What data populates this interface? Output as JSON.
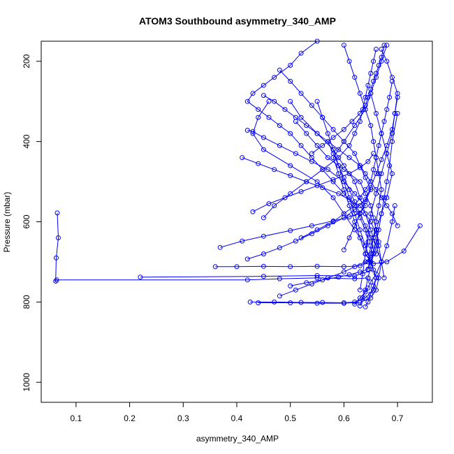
{
  "chart_data": {
    "type": "line",
    "title": "ATOM3 Southbound asymmetry_340_AMP",
    "xlabel": "asymmetry_340_AMP",
    "ylabel": "Pressure (mbar)",
    "xlim": [
      0.035,
      0.765
    ],
    "ylim": [
      1050,
      150
    ],
    "y_reversed": true,
    "grid": false,
    "legend": "none",
    "x_ticks": [
      0.1,
      0.2,
      0.3,
      0.4,
      0.5,
      0.6,
      0.7
    ],
    "x_tick_labels": [
      "0.1",
      "0.2",
      "0.3",
      "0.4",
      "0.5",
      "0.6",
      "0.7"
    ],
    "y_ticks": [
      200,
      400,
      600,
      800,
      1000
    ],
    "y_tick_labels": [
      "200",
      "400",
      "600",
      "800",
      "1000"
    ],
    "color": "#0000ff",
    "marker": "open-circle",
    "series": [
      {
        "x": [
          0.065,
          0.067,
          0.063,
          0.062,
          0.064,
          0.42,
          0.48,
          0.55,
          0.62,
          0.645
        ],
        "y": [
          578,
          640,
          690,
          748,
          745,
          745,
          742,
          740,
          742,
          740
        ]
      },
      {
        "x": [
          0.22,
          0.45,
          0.55,
          0.62,
          0.655,
          0.65,
          0.64,
          0.645,
          0.64,
          0.63,
          0.62,
          0.6,
          0.58,
          0.56,
          0.54,
          0.52,
          0.5,
          0.48,
          0.46,
          0.44,
          0.42,
          0.43,
          0.45,
          0.47,
          0.5,
          0.52,
          0.55
        ],
        "y": [
          738,
          736,
          734,
          735,
          720,
          700,
          680,
          650,
          620,
          590,
          560,
          530,
          500,
          470,
          440,
          410,
          380,
          360,
          340,
          320,
          300,
          280,
          260,
          240,
          210,
          180,
          150
        ]
      },
      {
        "x": [
          0.742,
          0.712,
          0.68,
          0.655,
          0.64,
          0.63,
          0.62,
          0.61,
          0.6,
          0.59,
          0.58,
          0.6,
          0.62,
          0.64,
          0.65,
          0.66,
          0.67,
          0.68
        ],
        "y": [
          610,
          673,
          700,
          705,
          680,
          640,
          600,
          560,
          520,
          480,
          440,
          400,
          360,
          320,
          280,
          240,
          200,
          160
        ]
      },
      {
        "x": [
          0.425,
          0.47,
          0.52,
          0.56,
          0.6,
          0.62,
          0.64,
          0.655,
          0.66,
          0.65,
          0.64,
          0.62,
          0.6,
          0.58,
          0.55,
          0.5,
          0.45,
          0.43,
          0.44,
          0.46
        ],
        "y": [
          800,
          800,
          801,
          801,
          802,
          800,
          790,
          770,
          740,
          700,
          660,
          620,
          580,
          540,
          500,
          460,
          420,
          380,
          340,
          300
        ]
      },
      {
        "x": [
          0.36,
          0.4,
          0.45,
          0.5,
          0.55,
          0.6,
          0.63,
          0.645,
          0.65,
          0.66,
          0.67,
          0.68,
          0.69,
          0.68,
          0.67,
          0.66,
          0.65
        ],
        "y": [
          712,
          712,
          711,
          712,
          711,
          712,
          710,
          700,
          660,
          620,
          580,
          540,
          480,
          430,
          380,
          330,
          280
        ]
      },
      {
        "x": [
          0.369,
          0.41,
          0.45,
          0.5,
          0.54,
          0.58,
          0.61,
          0.63,
          0.64,
          0.62,
          0.6,
          0.57,
          0.54,
          0.51,
          0.48,
          0.45,
          0.43,
          0.42
        ],
        "y": [
          664,
          648,
          636,
          622,
          610,
          598,
          588,
          578,
          560,
          530,
          500,
          470,
          450,
          430,
          410,
          390,
          375,
          372
        ]
      },
      {
        "x": [
          0.42,
          0.45,
          0.48,
          0.51,
          0.54,
          0.57,
          0.6,
          0.62,
          0.64,
          0.65,
          0.66,
          0.67,
          0.68,
          0.69,
          0.695,
          0.7
        ],
        "y": [
          693,
          680,
          665,
          648,
          630,
          610,
          590,
          570,
          545,
          515,
          480,
          445,
          410,
          370,
          330,
          290
        ]
      },
      {
        "x": [
          0.44,
          0.5,
          0.55,
          0.6,
          0.63,
          0.65,
          0.66,
          0.665,
          0.67,
          0.66,
          0.65,
          0.64,
          0.63,
          0.62,
          0.6,
          0.58,
          0.55,
          0.52,
          0.5
        ],
        "y": [
          802,
          802,
          803,
          803,
          801,
          790,
          770,
          740,
          700,
          660,
          620,
          580,
          540,
          500,
          460,
          420,
          380,
          340,
          300
        ]
      },
      {
        "x": [
          0.48,
          0.51,
          0.54,
          0.57,
          0.6,
          0.62,
          0.64,
          0.65,
          0.66,
          0.665,
          0.66,
          0.655,
          0.65,
          0.64,
          0.63,
          0.6,
          0.57,
          0.55,
          0.53,
          0.51
        ],
        "y": [
          785,
          770,
          755,
          740,
          725,
          712,
          700,
          690,
          680,
          650,
          620,
          590,
          560,
          530,
          500,
          470,
          440,
          410,
          380,
          350
        ]
      },
      {
        "x": [
          0.5,
          0.53,
          0.56,
          0.59,
          0.61,
          0.63,
          0.645,
          0.65,
          0.655,
          0.65,
          0.64,
          0.63,
          0.62,
          0.61,
          0.6,
          0.59,
          0.58,
          0.57
        ],
        "y": [
          760,
          752,
          745,
          738,
          732,
          725,
          718,
          700,
          670,
          640,
          610,
          580,
          550,
          520,
          490,
          460,
          430,
          400
        ]
      },
      {
        "x": [
          0.45,
          0.47,
          0.49,
          0.51,
          0.53,
          0.55,
          0.57,
          0.59,
          0.61,
          0.63,
          0.64,
          0.65,
          0.66,
          0.67,
          0.68,
          0.69,
          0.7
        ],
        "y": [
          285,
          300,
          320,
          340,
          360,
          380,
          400,
          420,
          440,
          460,
          480,
          500,
          520,
          540,
          560,
          580,
          610
        ]
      },
      {
        "x": [
          0.48,
          0.5,
          0.52,
          0.54,
          0.56,
          0.58,
          0.6,
          0.62,
          0.63,
          0.64,
          0.65,
          0.64,
          0.63,
          0.62,
          0.61,
          0.6
        ],
        "y": [
          222,
          250,
          280,
          310,
          340,
          370,
          400,
          430,
          460,
          490,
          520,
          550,
          580,
          610,
          640,
          670
        ]
      },
      {
        "x": [
          0.67,
          0.68,
          0.69,
          0.7,
          0.695,
          0.69,
          0.68,
          0.67,
          0.66,
          0.65,
          0.645,
          0.64,
          0.635,
          0.63
        ],
        "y": [
          170,
          200,
          240,
          280,
          330,
          380,
          430,
          480,
          530,
          580,
          630,
          680,
          730,
          770
        ]
      },
      {
        "x": [
          0.45,
          0.47,
          0.5,
          0.53,
          0.56,
          0.59,
          0.61,
          0.62,
          0.63,
          0.635,
          0.64,
          0.645,
          0.65,
          0.655,
          0.66
        ],
        "y": [
          590,
          560,
          530,
          500,
          470,
          440,
          410,
          380,
          350,
          320,
          290,
          260,
          230,
          200,
          170
        ]
      },
      {
        "x": [
          0.41,
          0.44,
          0.47,
          0.5,
          0.53,
          0.56,
          0.59,
          0.61,
          0.63,
          0.64,
          0.65,
          0.66,
          0.665,
          0.67,
          0.675
        ],
        "y": [
          440,
          455,
          470,
          485,
          500,
          515,
          530,
          545,
          560,
          580,
          600,
          630,
          660,
          700,
          740
        ]
      },
      {
        "x": [
          0.52,
          0.55,
          0.58,
          0.6,
          0.62,
          0.63,
          0.64,
          0.65,
          0.655,
          0.66,
          0.665,
          0.67,
          0.675,
          0.68,
          0.685,
          0.69
        ],
        "y": [
          640,
          620,
          600,
          580,
          560,
          540,
          520,
          500,
          470,
          440,
          410,
          380,
          350,
          320,
          290,
          250
        ]
      },
      {
        "x": [
          0.54,
          0.56,
          0.58,
          0.6,
          0.615,
          0.63,
          0.64,
          0.645,
          0.65,
          0.655,
          0.66,
          0.665,
          0.67,
          0.675
        ],
        "y": [
          430,
          410,
          390,
          370,
          350,
          330,
          310,
          290,
          270,
          250,
          230,
          210,
          190,
          160
        ]
      },
      {
        "x": [
          0.6,
          0.61,
          0.62,
          0.63,
          0.64,
          0.65,
          0.655,
          0.66,
          0.665,
          0.67,
          0.665,
          0.66,
          0.655,
          0.65,
          0.645
        ],
        "y": [
          160,
          200,
          240,
          280,
          320,
          360,
          400,
          440,
          480,
          520,
          560,
          600,
          640,
          680,
          720
        ]
      },
      {
        "x": [
          0.63,
          0.635,
          0.64,
          0.645,
          0.65,
          0.655,
          0.66,
          0.665,
          0.67,
          0.675,
          0.68,
          0.685,
          0.69,
          0.7
        ],
        "y": [
          810,
          790,
          770,
          740,
          710,
          680,
          650,
          620,
          580,
          540,
          500,
          460,
          400,
          330
        ]
      },
      {
        "x": [
          0.64,
          0.645,
          0.65,
          0.655,
          0.66,
          0.65,
          0.64,
          0.63,
          0.62,
          0.61,
          0.6,
          0.59,
          0.58,
          0.57,
          0.56,
          0.55
        ],
        "y": [
          812,
          800,
          780,
          760,
          740,
          700,
          660,
          620,
          580,
          540,
          500,
          460,
          420,
          380,
          340,
          300
        ]
      },
      {
        "x": [
          0.62,
          0.63,
          0.64,
          0.645,
          0.65,
          0.66,
          0.67,
          0.68,
          0.69,
          0.695
        ],
        "y": [
          805,
          790,
          775,
          765,
          750,
          730,
          700,
          660,
          600,
          560
        ]
      },
      {
        "x": [
          0.43,
          0.46,
          0.49,
          0.52,
          0.55,
          0.58,
          0.61,
          0.63,
          0.645,
          0.655
        ],
        "y": [
          575,
          555,
          540,
          525,
          510,
          495,
          480,
          465,
          450,
          430
        ]
      }
    ]
  }
}
